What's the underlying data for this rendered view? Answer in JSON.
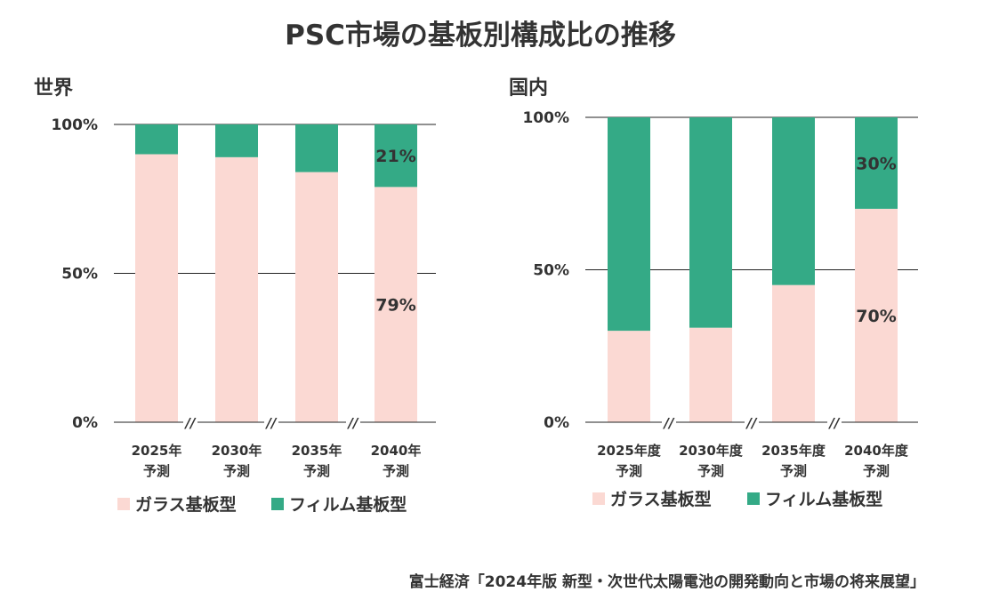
{
  "title": "PSC市場の基板別構成比の推移",
  "source": "富士経済「2024年版 新型・次世代太陽電池の開発動向と市場の将来展望」",
  "colors": {
    "glass": "#fbd9d3",
    "film": "#34aa86"
  },
  "chart_data": [
    {
      "type": "bar",
      "stacked": true,
      "subtitle": "世界",
      "categories": [
        "2025年\n予測",
        "2030年\n予測",
        "2035年\n予測",
        "2040年\n予測"
      ],
      "yticks": [
        "0%",
        "50%",
        "100%"
      ],
      "ylim": [
        0,
        100
      ],
      "series": [
        {
          "name": "ガラス基板型",
          "values": [
            90,
            89,
            84,
            79
          ],
          "labels": [
            "",
            "",
            "",
            "79%"
          ]
        },
        {
          "name": "フィルム基板型",
          "values": [
            10,
            11,
            16,
            21
          ],
          "labels": [
            "",
            "",
            "",
            "21%"
          ]
        }
      ],
      "axis_break_marker": "//",
      "legend": "bottom"
    },
    {
      "type": "bar",
      "stacked": true,
      "subtitle": "国内",
      "categories": [
        "2025年度\n予測",
        "2030年度\n予測",
        "2035年度\n予測",
        "2040年度\n予測"
      ],
      "yticks": [
        "0%",
        "50%",
        "100%"
      ],
      "ylim": [
        0,
        100
      ],
      "series": [
        {
          "name": "ガラス基板型",
          "values": [
            30,
            31,
            45,
            70
          ],
          "labels": [
            "",
            "",
            "",
            "70%"
          ]
        },
        {
          "name": "フィルム基板型",
          "values": [
            70,
            69,
            55,
            30
          ],
          "labels": [
            "",
            "",
            "",
            "30%"
          ]
        }
      ],
      "axis_break_marker": "//",
      "legend": "bottom"
    }
  ]
}
